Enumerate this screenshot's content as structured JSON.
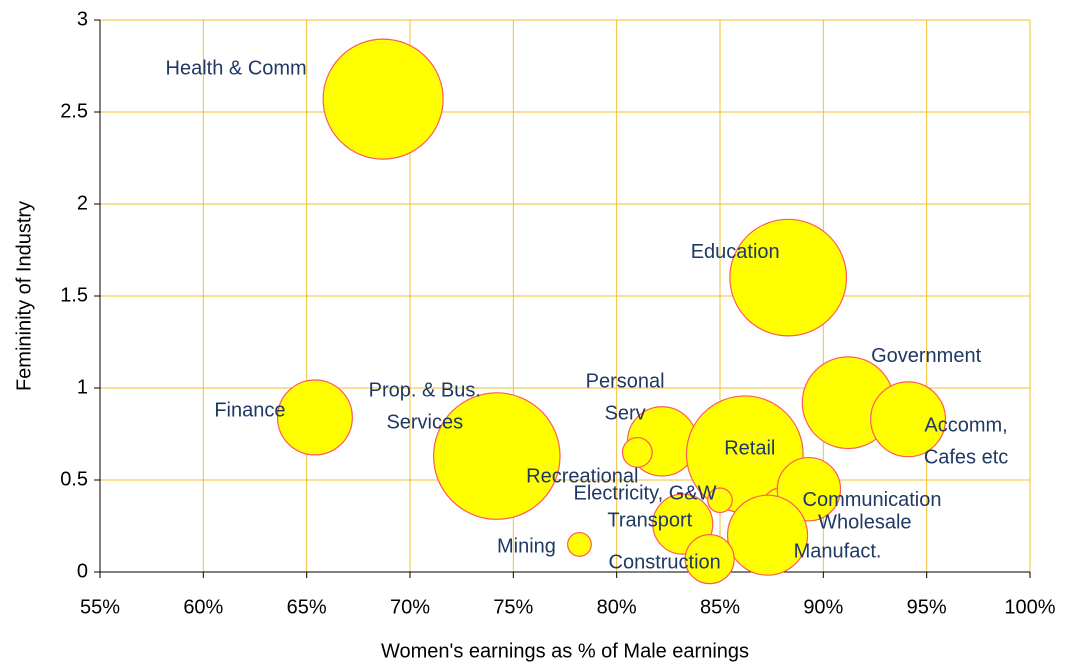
{
  "chart_data": {
    "type": "bubble",
    "x_label": "Women's earnings as % of Male earnings",
    "y_label": "Femininity of Industry",
    "labels": [
      [
        "Health & Comm"
      ],
      [
        "Education"
      ],
      [
        "Government"
      ],
      [
        "Accomm,",
        "Cafes etc"
      ],
      [
        "Finance"
      ],
      [
        "Prop. & Bus.",
        "Services"
      ],
      [
        "Personal",
        "Serv"
      ],
      [
        "Recreational"
      ],
      [
        "Retail"
      ],
      [
        "Communication"
      ],
      [
        "Wholesale"
      ],
      [
        "Manufact."
      ],
      [
        "Electricity, G&W"
      ],
      [
        "Transport"
      ],
      [
        "Construction"
      ],
      [
        "Mining"
      ]
    ],
    "x": [
      68.7,
      88.3,
      91.2,
      94.1,
      65.4,
      74.2,
      82.2,
      81.0,
      86.2,
      88.0,
      89.3,
      87.3,
      85.0,
      83.2,
      84.5,
      78.2
    ],
    "values": [
      2.57,
      1.6,
      0.92,
      0.83,
      0.84,
      0.63,
      0.71,
      0.65,
      0.64,
      0.35,
      0.45,
      0.2,
      0.39,
      0.26,
      0.07,
      0.15
    ],
    "sizes": [
      36,
      34,
      21,
      14,
      14,
      40,
      12,
      2.2,
      34,
      4,
      10,
      16,
      1.5,
      9,
      6,
      1.4
    ],
    "color": "#ffff00",
    "edge_color": "#ff5a5a",
    "xlim": [
      55,
      100
    ],
    "xticks": [
      {
        "value": 55,
        "label": "55%"
      },
      {
        "value": 60,
        "label": "60%"
      },
      {
        "value": 65,
        "label": "65%"
      },
      {
        "value": 70,
        "label": "70%"
      },
      {
        "value": 75,
        "label": "75%"
      },
      {
        "value": 80,
        "label": "80%"
      },
      {
        "value": 85,
        "label": "85%"
      },
      {
        "value": 90,
        "label": "90%"
      },
      {
        "value": 95,
        "label": "95%"
      },
      {
        "value": 100,
        "label": "100%"
      }
    ],
    "ylim": [
      0,
      3
    ],
    "yticks": [
      0,
      0.5,
      1,
      1.5,
      2,
      2.5,
      3
    ],
    "grid": true
  }
}
